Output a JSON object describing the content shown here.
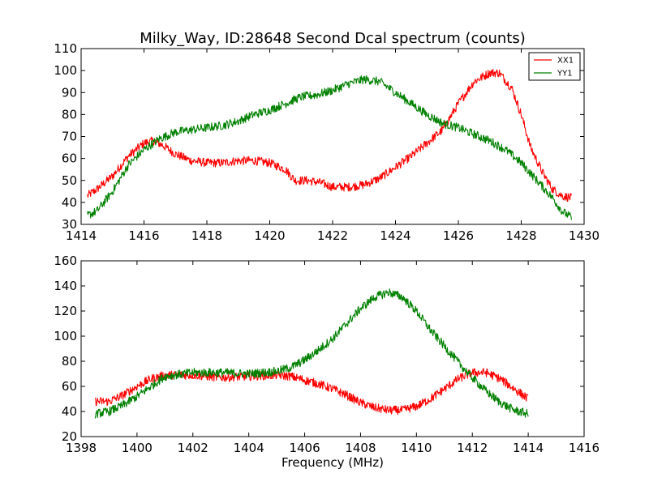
{
  "figure": {
    "title": "Milky_Way, ID:28648 Second Dcal spectrum (counts)"
  },
  "chart_data": [
    {
      "type": "line",
      "title": "Milky_Way, ID:28648 Second Dcal spectrum (counts)",
      "xlabel": "",
      "ylabel": "",
      "xlim": [
        1414,
        1430
      ],
      "ylim": [
        30,
        110
      ],
      "xticks": [
        1414,
        1416,
        1418,
        1420,
        1422,
        1424,
        1426,
        1428,
        1430
      ],
      "yticks": [
        30,
        40,
        50,
        60,
        70,
        80,
        90,
        100,
        110
      ],
      "grid": false,
      "legend": "top-right",
      "series": [
        {
          "name": "XX1",
          "color": "#ff0000",
          "x": [
            1414.2,
            1414.5,
            1415.0,
            1415.5,
            1416.0,
            1416.3,
            1416.6,
            1417.0,
            1417.5,
            1418.0,
            1418.5,
            1419.0,
            1419.5,
            1420.0,
            1420.5,
            1420.8,
            1421.2,
            1421.6,
            1422.0,
            1422.5,
            1423.0,
            1423.5,
            1424.0,
            1424.5,
            1425.0,
            1425.5,
            1426.0,
            1426.5,
            1427.0,
            1427.3,
            1427.7,
            1428.0,
            1428.3,
            1428.7,
            1429.0,
            1429.3,
            1429.6
          ],
          "y": [
            43,
            46,
            52,
            61,
            67,
            68,
            66,
            62,
            59,
            58,
            58,
            59,
            59,
            58,
            55,
            50,
            50,
            49,
            47,
            47,
            48,
            51,
            56,
            61,
            67,
            73,
            85,
            95,
            99,
            99,
            92,
            80,
            65,
            53,
            46,
            43,
            42
          ]
        },
        {
          "name": "YY1",
          "color": "#008000",
          "x": [
            1414.2,
            1414.5,
            1415.0,
            1415.5,
            1416.0,
            1416.5,
            1417.0,
            1417.5,
            1418.0,
            1418.5,
            1419.0,
            1419.5,
            1420.0,
            1420.5,
            1421.0,
            1421.5,
            1422.0,
            1422.5,
            1423.0,
            1423.5,
            1424.0,
            1424.5,
            1425.0,
            1425.5,
            1426.0,
            1426.5,
            1427.0,
            1427.5,
            1428.0,
            1428.5,
            1429.0,
            1429.3,
            1429.6
          ],
          "y": [
            34,
            36,
            45,
            57,
            64,
            69,
            72,
            73,
            74,
            75,
            77,
            80,
            82,
            85,
            88,
            89,
            91,
            94,
            96,
            95,
            90,
            85,
            80,
            76,
            74,
            71,
            68,
            64,
            58,
            50,
            42,
            36,
            33
          ]
        }
      ]
    },
    {
      "type": "line",
      "title": "",
      "xlabel": "Frequency (MHz)",
      "ylabel": "",
      "xlim": [
        1398,
        1416
      ],
      "ylim": [
        20,
        160
      ],
      "xticks": [
        1398,
        1400,
        1402,
        1404,
        1406,
        1408,
        1410,
        1412,
        1414,
        1416
      ],
      "yticks": [
        20,
        40,
        60,
        80,
        100,
        120,
        140,
        160
      ],
      "grid": false,
      "legend": "none",
      "series": [
        {
          "color": "#ff0000",
          "x": [
            1398.5,
            1399.0,
            1399.5,
            1400.0,
            1400.5,
            1401.0,
            1402.0,
            1403.0,
            1404.0,
            1405.0,
            1405.5,
            1406.0,
            1406.5,
            1407.0,
            1407.5,
            1408.0,
            1408.5,
            1409.0,
            1409.5,
            1410.0,
            1410.5,
            1411.0,
            1411.5,
            1412.0,
            1412.5,
            1413.0,
            1413.5,
            1414.0
          ],
          "y": [
            48,
            48,
            53,
            60,
            66,
            69,
            69,
            67,
            68,
            69,
            68,
            65,
            62,
            58,
            53,
            47,
            43,
            41,
            41,
            44,
            50,
            58,
            66,
            71,
            71,
            66,
            58,
            50
          ]
        },
        {
          "color": "#008000",
          "x": [
            1398.5,
            1399.0,
            1399.5,
            1400.0,
            1400.5,
            1401.0,
            1402.0,
            1403.0,
            1404.0,
            1405.0,
            1405.5,
            1406.0,
            1406.5,
            1407.0,
            1407.5,
            1408.0,
            1408.5,
            1409.0,
            1409.5,
            1410.0,
            1410.5,
            1411.0,
            1411.5,
            1412.0,
            1412.5,
            1413.0,
            1413.5,
            1414.0
          ],
          "y": [
            38,
            40,
            45,
            52,
            60,
            68,
            71,
            71,
            70,
            72,
            75,
            81,
            89,
            98,
            110,
            122,
            131,
            135,
            131,
            120,
            105,
            92,
            79,
            67,
            56,
            47,
            41,
            38
          ]
        }
      ]
    }
  ]
}
